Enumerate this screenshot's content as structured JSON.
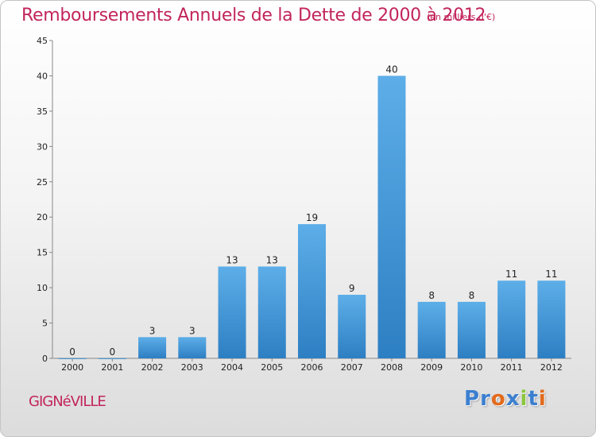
{
  "header": {
    "title": "Remboursements Annuels de la Dette de 2000 à 2012",
    "subtitle": "(en milliers d'€)"
  },
  "footer": {
    "place": "GIGNéVILLE",
    "brand_letters": [
      {
        "char": "P",
        "color": "#3b7fd0"
      },
      {
        "char": "r",
        "color": "#3b7fd0"
      },
      {
        "char": "o",
        "color": "#e36a1c"
      },
      {
        "char": "x",
        "color": "#3b7fd0"
      },
      {
        "char": "i",
        "color": "#8cc63f"
      },
      {
        "char": "t",
        "color": "#3b7fd0"
      },
      {
        "char": "i",
        "color": "#e36a1c"
      }
    ]
  },
  "colors": {
    "title": "#c2255c",
    "bar_light": "#5daee8",
    "bar_dark": "#2d7fc3",
    "axis": "#888888"
  },
  "chart_data": {
    "type": "bar",
    "title": "Remboursements Annuels de la Dette de 2000 à 2012",
    "subtitle": "(en milliers d'€)",
    "categories": [
      "2000",
      "2001",
      "2002",
      "2003",
      "2004",
      "2005",
      "2006",
      "2007",
      "2008",
      "2009",
      "2010",
      "2011",
      "2012"
    ],
    "values": [
      0,
      0,
      3,
      3,
      13,
      13,
      19,
      9,
      40,
      8,
      8,
      11,
      11
    ],
    "ylim": [
      0,
      45
    ],
    "yticks": [
      0,
      5,
      10,
      15,
      20,
      25,
      30,
      35,
      40,
      45
    ],
    "grid": false,
    "data_labels": true
  }
}
